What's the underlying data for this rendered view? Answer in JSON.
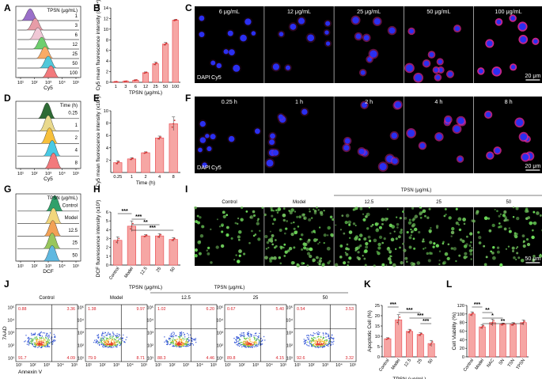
{
  "panel_labels": [
    "A",
    "B",
    "C",
    "D",
    "E",
    "F",
    "G",
    "H",
    "I",
    "J",
    "K",
    "L"
  ],
  "colors": {
    "bar": "#f6a6a4",
    "bar_edge": "#e8464c",
    "dot": "#d92b2b",
    "hist": [
      "#9a6fc9",
      "#e79ca7",
      "#f0c8d6",
      "#6ecf6e",
      "#f9ab66",
      "#51c8da",
      "#f2797c"
    ],
    "hist_d": [
      "#2e6b35",
      "#e9d98d",
      "#f7c03a",
      "#48c9e4",
      "#f2797c"
    ],
    "hist_g": [
      "#30a06a",
      "#f2d77c",
      "#f2a154",
      "#98c65c",
      "#5fb8e0",
      "#f2797c"
    ]
  },
  "A": {
    "xlabel": "Cy5",
    "legend_title": "TPSN (μg/mL)",
    "levels": [
      "1",
      "3",
      "6",
      "12",
      "25",
      "50",
      "100"
    ]
  },
  "D": {
    "xlabel": "Cy5",
    "legend_title": "Time (h)",
    "levels": [
      "0.25",
      "1",
      "2",
      "4",
      "8"
    ]
  },
  "G": {
    "xlabel": "DCF",
    "legend_title": "TPSN (μg/mL)",
    "levels": [
      "Control",
      "Model",
      "12.5",
      "25",
      "50"
    ]
  },
  "C": {
    "labels": [
      "6 μg/mL",
      "12 μg/mL",
      "25 μg/mL",
      "50 μg/mL",
      "100 μg/mL"
    ],
    "legend_dapi": "DAPI",
    "legend_cy5": "Cy5",
    "scale": "20 μm"
  },
  "F": {
    "labels": [
      "0.25 h",
      "1 h",
      "2 h",
      "4 h",
      "8 h"
    ],
    "legend_dapi": "DAPI",
    "legend_cy5": "Cy5",
    "scale": "20 μm"
  },
  "I": {
    "labels": [
      "Control",
      "Model",
      "12.5",
      "25",
      "50"
    ],
    "group_label": "TPSN (μg/mL)",
    "scale": "50 μm"
  },
  "J": {
    "labels": [
      "Control",
      "Model",
      "12.5",
      "25",
      "50"
    ],
    "group_label": "TPSN (μg/mL)",
    "ylabel": "7AAD",
    "xlabel": "Annexin V",
    "quadrants": [
      {
        "ul": "0.88",
        "ur": "3.36",
        "ll": "91.7",
        "lr": "4.09"
      },
      {
        "ul": "1.38",
        "ur": "9.97",
        "ll": "79.9",
        "lr": "8.71"
      },
      {
        "ul": "1.02",
        "ur": "6.20",
        "ll": "88.3",
        "lr": "4.46"
      },
      {
        "ul": "0.67",
        "ur": "5.40",
        "ll": "89.8",
        "lr": "4.15"
      },
      {
        "ul": "0.54",
        "ur": "3.53",
        "ll": "92.6",
        "lr": "3.32"
      }
    ],
    "ticks": [
      "10¹",
      "10²",
      "10³",
      "10⁴",
      "10⁵"
    ]
  },
  "chart_data": [
    {
      "panel": "B",
      "type": "bar",
      "categories": [
        "1",
        "3",
        "6",
        "12",
        "25",
        "50",
        "100"
      ],
      "values": [
        0.1,
        0.2,
        0.4,
        1.8,
        3.5,
        7.2,
        11.7
      ],
      "errors": [
        0.05,
        0.05,
        0.1,
        0.15,
        0.3,
        0.3,
        0.15
      ],
      "xlabel": "TPSN (μg/mL)",
      "ylabel": "Cy5 mean fluorescence intensity (x10⁴)",
      "ylim": [
        0,
        14
      ],
      "yticks": [
        0,
        2,
        4,
        6,
        8,
        10,
        12,
        14
      ]
    },
    {
      "panel": "E",
      "type": "bar",
      "categories": [
        "0.25",
        "1",
        "2",
        "4",
        "8"
      ],
      "values": [
        1.6,
        2.2,
        3.2,
        5.6,
        7.9
      ],
      "errors": [
        0.3,
        0.2,
        0.15,
        0.3,
        1.1
      ],
      "xlabel": "Time (h)",
      "ylabel": "Cy5 mean fluorescence intensity (x10⁴)",
      "ylim": [
        0,
        10
      ],
      "yticks": [
        2,
        4,
        6,
        8,
        10
      ]
    },
    {
      "panel": "H",
      "type": "bar",
      "categories": [
        "Control",
        "Model",
        "12.5",
        "25",
        "50"
      ],
      "values": [
        2.8,
        4.4,
        3.3,
        3.3,
        2.9
      ],
      "errors": [
        0.4,
        0.6,
        0.15,
        0.25,
        0.2
      ],
      "xlabel": "TPSN (μg/mL)",
      "ylabel": "DCF fluorescence intensity (x10³)",
      "ylim": [
        0,
        6
      ],
      "yticks": [
        0,
        1,
        2,
        3,
        4,
        5,
        6
      ],
      "sig": [
        {
          "from": 0,
          "to": 1,
          "label": "***"
        },
        {
          "from": 1,
          "to": 2,
          "label": "***"
        },
        {
          "from": 1,
          "to": 3,
          "label": "**"
        },
        {
          "from": 1,
          "to": 4,
          "label": "***"
        }
      ]
    },
    {
      "panel": "K",
      "type": "bar",
      "categories": [
        "Control",
        "Model",
        "12.5",
        "25",
        "50"
      ],
      "values": [
        8.8,
        18.0,
        12.4,
        10.9,
        6.5
      ],
      "errors": [
        0.5,
        2.5,
        1.0,
        0.8,
        1.5
      ],
      "xlabel": "TPSN (μg/mL)",
      "ylabel": "Apoptotic Cell (%)",
      "ylim": [
        0,
        25
      ],
      "yticks": [
        0,
        5,
        10,
        15,
        20,
        25
      ],
      "sig": [
        {
          "from": 0,
          "to": 1,
          "label": "***"
        },
        {
          "from": 1,
          "to": 3,
          "label": "***"
        },
        {
          "from": 2,
          "to": 4,
          "label": "***"
        },
        {
          "from": 3,
          "to": 4,
          "label": "***"
        }
      ]
    },
    {
      "panel": "L",
      "type": "bar",
      "categories": [
        "Control",
        "Model",
        "NAC",
        "SN",
        "TSN",
        "TPSN"
      ],
      "values": [
        100,
        70,
        80,
        76,
        76,
        80
      ],
      "errors": [
        5,
        5,
        8,
        3,
        4,
        6
      ],
      "xlabel": "",
      "ylabel": "Cell Viability (%)",
      "ylim": [
        0,
        120
      ],
      "yticks": [
        0,
        20,
        40,
        60,
        80,
        100,
        120
      ],
      "sig": [
        {
          "from": 0,
          "to": 1,
          "label": "***"
        },
        {
          "from": 1,
          "to": 2,
          "label": "**"
        },
        {
          "from": 1,
          "to": 3,
          "label": "*"
        },
        {
          "from": 1,
          "to": 5,
          "label": "**"
        }
      ]
    }
  ]
}
